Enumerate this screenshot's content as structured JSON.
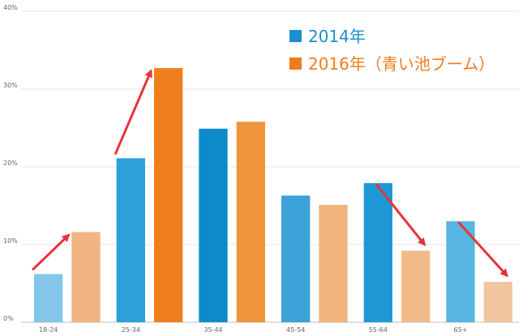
{
  "chart_data": {
    "type": "bar",
    "categories": [
      "18-24",
      "25-34",
      "35-44",
      "45-54",
      "55-64",
      "65+"
    ],
    "series": [
      {
        "name": "2014年",
        "values": [
          6.2,
          21.1,
          24.9,
          16.3,
          17.9,
          13.0
        ]
      },
      {
        "name": "2016年（青い池ブーム）",
        "values": [
          11.6,
          32.7,
          25.8,
          15.1,
          9.2,
          5.2
        ]
      }
    ],
    "y_ticks": [
      "0%",
      "10%",
      "20%",
      "30%",
      "40%"
    ],
    "ylim": [
      0,
      40
    ],
    "y_unit": "%",
    "grid": true,
    "legend_position": "top-right",
    "series_colors": [
      "#1a8fcc",
      "#ee7d1e"
    ],
    "bar_colors": {
      "2014年": [
        "#84c6ea",
        "#2ba1d8",
        "#0c8ac9",
        "#3ba3d8",
        "#1f98d6",
        "#58b6e2"
      ],
      "2016年（青い池ブーム）": [
        "#f0b583",
        "#ef7f1c",
        "#ee943b",
        "#f0b47e",
        "#f2ba89",
        "#f1c69f"
      ]
    },
    "annotations": [
      {
        "type": "arrow",
        "color": "#e8333a",
        "direction": "up",
        "categories": [
          "18-24"
        ]
      },
      {
        "type": "arrow",
        "color": "#e8333a",
        "direction": "up",
        "categories": [
          "25-34"
        ]
      },
      {
        "type": "arrow",
        "color": "#e8333a",
        "direction": "down",
        "categories": [
          "55-64"
        ]
      },
      {
        "type": "arrow",
        "color": "#e8333a",
        "direction": "down",
        "categories": [
          "65+"
        ]
      }
    ]
  }
}
